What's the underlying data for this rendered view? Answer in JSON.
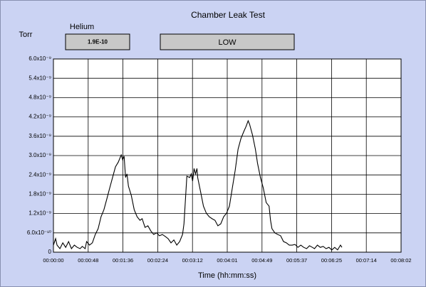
{
  "indicator": {
    "label": "Helium",
    "value": "1.9E-10"
  },
  "status": "LOW",
  "chart_data": {
    "type": "line",
    "title": "Chamber Leak Test",
    "y_label": "Torr",
    "x_label": "Time (hh:mm:ss)",
    "xlim": [
      0,
      482
    ],
    "ylim": [
      0,
      6e-09
    ],
    "grid": true,
    "xticks": [
      {
        "value": 0,
        "label": "00:00:00"
      },
      {
        "value": 48.2,
        "label": "00:00:48"
      },
      {
        "value": 96.4,
        "label": "00:01:36"
      },
      {
        "value": 144.6,
        "label": "00:02:24"
      },
      {
        "value": 192.8,
        "label": "00:03:12"
      },
      {
        "value": 241,
        "label": "00:04:01"
      },
      {
        "value": 289.2,
        "label": "00:04:49"
      },
      {
        "value": 337.4,
        "label": "00:05:37"
      },
      {
        "value": 385.6,
        "label": "00:06:25"
      },
      {
        "value": 433.8,
        "label": "00:07:14"
      },
      {
        "value": 482,
        "label": "00:08:02"
      }
    ],
    "yticks": [
      0,
      {
        "value": 6e-10,
        "label": "6.0x10⁻¹⁰"
      },
      {
        "value": 1.2e-09,
        "label": "1.2x10⁻⁹"
      },
      {
        "value": 1.8e-09,
        "label": "1.8x10⁻⁹"
      },
      {
        "value": 2.4e-09,
        "label": "2.4x10⁻⁹"
      },
      {
        "value": 3e-09,
        "label": "3.0x10⁻⁹"
      },
      {
        "value": 3.6e-09,
        "label": "3.6x10⁻⁹"
      },
      {
        "value": 4.2e-09,
        "label": "4.2x10⁻⁹"
      },
      {
        "value": 4.8e-09,
        "label": "4.8x10⁻⁹"
      },
      {
        "value": 5.4e-09,
        "label": "5.4x10⁻⁹"
      },
      {
        "value": 6e-09,
        "label": "6.0x10⁻⁹"
      }
    ],
    "series": [
      {
        "name": "Helium",
        "color": "#000000",
        "x": [
          0,
          3,
          5,
          9,
          13,
          17,
          21,
          25,
          29,
          33,
          37,
          40,
          44,
          46,
          50,
          54,
          58,
          62,
          66,
          70,
          74,
          78,
          82,
          86,
          90,
          94,
          96,
          98,
          100,
          102,
          104,
          108,
          112,
          116,
          120,
          123,
          127,
          131,
          135,
          139,
          143,
          147,
          151,
          155,
          159,
          163,
          167,
          171,
          175,
          179,
          181,
          185,
          189,
          191,
          193,
          195,
          197,
          199,
          200,
          204,
          208,
          212,
          216,
          220,
          224,
          228,
          232,
          236,
          240,
          244,
          248,
          252,
          256,
          260,
          264,
          267,
          270,
          272,
          276,
          280,
          283,
          287,
          291,
          295,
          299,
          301,
          303,
          307,
          311,
          315,
          319,
          323,
          327,
          331,
          335,
          339,
          343,
          347,
          351,
          355,
          359,
          362,
          366,
          370,
          374,
          378,
          382,
          386,
          390,
          394,
          398,
          400
        ],
        "values": [
          2.2e-10,
          4.2e-10,
          2.2e-10,
          1.1e-10,
          2.9e-10,
          1.5e-10,
          3.3e-10,
          1.1e-10,
          2.2e-10,
          1.5e-10,
          1.1e-10,
          1.8e-10,
          1.1e-10,
          3.3e-10,
          2.2e-10,
          2.9e-10,
          5.5e-10,
          7.3e-10,
          1.1e-09,
          1.32e-09,
          1.65e-09,
          1.99e-09,
          2.32e-09,
          2.65e-09,
          2.8e-09,
          3.02e-09,
          2.87e-09,
          2.98e-09,
          2.32e-09,
          2.43e-09,
          2.05e-09,
          1.76e-09,
          1.32e-09,
          1.1e-09,
          9.9e-10,
          1.04e-09,
          7.7e-10,
          8.2e-10,
          6.6e-10,
          5.5e-10,
          6e-10,
          5.1e-10,
          5.5e-10,
          4.9e-10,
          4.2e-10,
          2.9e-10,
          3.8e-10,
          2.2e-10,
          3.3e-10,
          5.5e-10,
          8.8e-10,
          2.36e-09,
          2.32e-09,
          2.43e-09,
          2.21e-09,
          2.6e-09,
          2.43e-09,
          2.6e-09,
          2.32e-09,
          1.88e-09,
          1.43e-09,
          1.21e-09,
          1.1e-09,
          1.04e-09,
          9.9e-10,
          8.2e-10,
          8.8e-10,
          1.1e-09,
          1.21e-09,
          1.43e-09,
          1.99e-09,
          2.54e-09,
          3.2e-09,
          3.53e-09,
          3.75e-09,
          3.9e-09,
          4.08e-09,
          3.97e-09,
          3.64e-09,
          3.2e-09,
          2.76e-09,
          2.32e-09,
          1.99e-09,
          1.54e-09,
          1.43e-09,
          9.9e-10,
          7.3e-10,
          6e-10,
          5.5e-10,
          5.1e-10,
          3.3e-10,
          2.9e-10,
          2.2e-10,
          2.2e-10,
          2.4e-10,
          1.5e-10,
          2.2e-10,
          1.5e-10,
          1.1e-10,
          2e-10,
          1.5e-10,
          1.1e-10,
          2.2e-10,
          1.5e-10,
          1.8e-10,
          1.1e-10,
          1.5e-10,
          7e-11,
          1.5e-10,
          7e-11,
          2.2e-10,
          1.5e-10
        ]
      }
    ]
  }
}
